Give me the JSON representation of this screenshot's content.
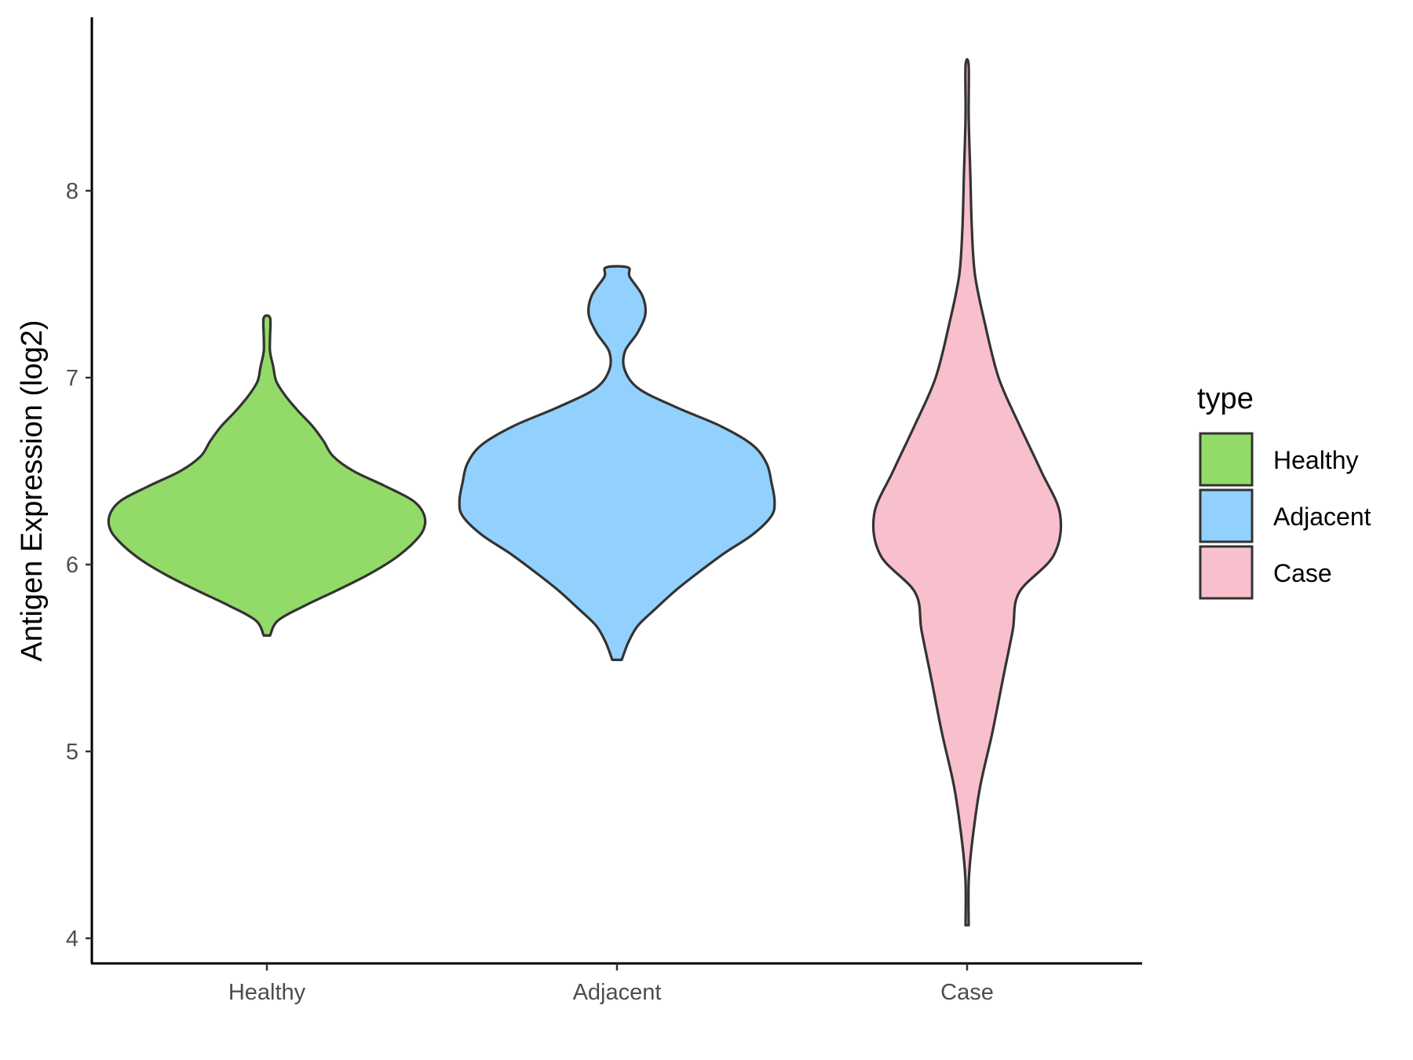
{
  "chart_data": {
    "type": "violin",
    "title": "",
    "xlabel": "",
    "ylabel": "Antigen Expression (log2)",
    "ylim": [
      3.85,
      8.9
    ],
    "yticks": [
      4,
      5,
      6,
      7,
      8
    ],
    "grid": false,
    "legend": {
      "title": "type",
      "position": "right"
    },
    "categories": [
      "Healthy",
      "Adjacent",
      "Case"
    ],
    "series": [
      {
        "name": "Healthy",
        "color": "#93DB69",
        "min": 5.62,
        "max": 7.32,
        "density": [
          [
            5.62,
            0.02
          ],
          [
            5.7,
            0.07
          ],
          [
            5.78,
            0.24
          ],
          [
            5.86,
            0.44
          ],
          [
            5.94,
            0.63
          ],
          [
            6.02,
            0.79
          ],
          [
            6.1,
            0.91
          ],
          [
            6.18,
            0.99
          ],
          [
            6.26,
            1.0
          ],
          [
            6.34,
            0.93
          ],
          [
            6.42,
            0.75
          ],
          [
            6.5,
            0.55
          ],
          [
            6.58,
            0.42
          ],
          [
            6.66,
            0.36
          ],
          [
            6.74,
            0.29
          ],
          [
            6.82,
            0.2
          ],
          [
            6.9,
            0.12
          ],
          [
            6.98,
            0.06
          ],
          [
            7.06,
            0.04
          ],
          [
            7.14,
            0.02
          ],
          [
            7.22,
            0.02
          ],
          [
            7.32,
            0.02
          ]
        ]
      },
      {
        "name": "Adjacent",
        "color": "#92D1FE",
        "min": 5.49,
        "max": 7.59,
        "density": [
          [
            5.49,
            0.03
          ],
          [
            5.58,
            0.07
          ],
          [
            5.67,
            0.13
          ],
          [
            5.76,
            0.24
          ],
          [
            5.86,
            0.37
          ],
          [
            5.96,
            0.52
          ],
          [
            6.06,
            0.68
          ],
          [
            6.16,
            0.86
          ],
          [
            6.26,
            0.98
          ],
          [
            6.34,
            1.0
          ],
          [
            6.44,
            0.98
          ],
          [
            6.54,
            0.95
          ],
          [
            6.64,
            0.86
          ],
          [
            6.74,
            0.66
          ],
          [
            6.84,
            0.38
          ],
          [
            6.94,
            0.14
          ],
          [
            7.04,
            0.05
          ],
          [
            7.14,
            0.05
          ],
          [
            7.24,
            0.13
          ],
          [
            7.34,
            0.18
          ],
          [
            7.44,
            0.16
          ],
          [
            7.54,
            0.08
          ],
          [
            7.59,
            0.07
          ]
        ]
      },
      {
        "name": "Case",
        "color": "#F7C0CC",
        "min": 4.07,
        "max": 8.67,
        "density": [
          [
            4.07,
            0.01
          ],
          [
            4.3,
            0.01
          ],
          [
            4.5,
            0.03
          ],
          [
            4.8,
            0.08
          ],
          [
            5.1,
            0.16
          ],
          [
            5.4,
            0.23
          ],
          [
            5.65,
            0.29
          ],
          [
            5.85,
            0.33
          ],
          [
            6.05,
            0.55
          ],
          [
            6.27,
            0.59
          ],
          [
            6.5,
            0.47
          ],
          [
            6.75,
            0.33
          ],
          [
            7.0,
            0.2
          ],
          [
            7.3,
            0.11
          ],
          [
            7.55,
            0.05
          ],
          [
            7.8,
            0.03
          ],
          [
            8.1,
            0.02
          ],
          [
            8.4,
            0.01
          ],
          [
            8.67,
            0.01
          ]
        ]
      }
    ]
  }
}
